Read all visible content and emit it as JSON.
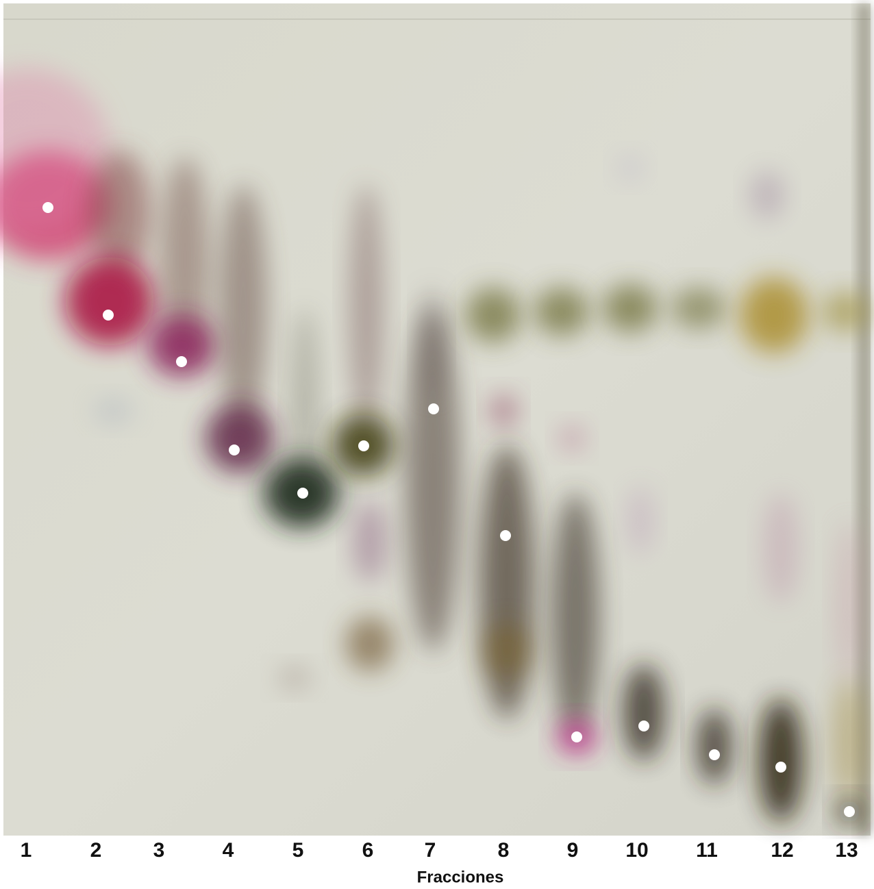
{
  "lanes": [
    "1",
    "2",
    "3",
    "4",
    "5",
    "6",
    "7",
    "8",
    "9",
    "10",
    "11",
    "12",
    "13"
  ],
  "axis_label": "Fracciones"
}
